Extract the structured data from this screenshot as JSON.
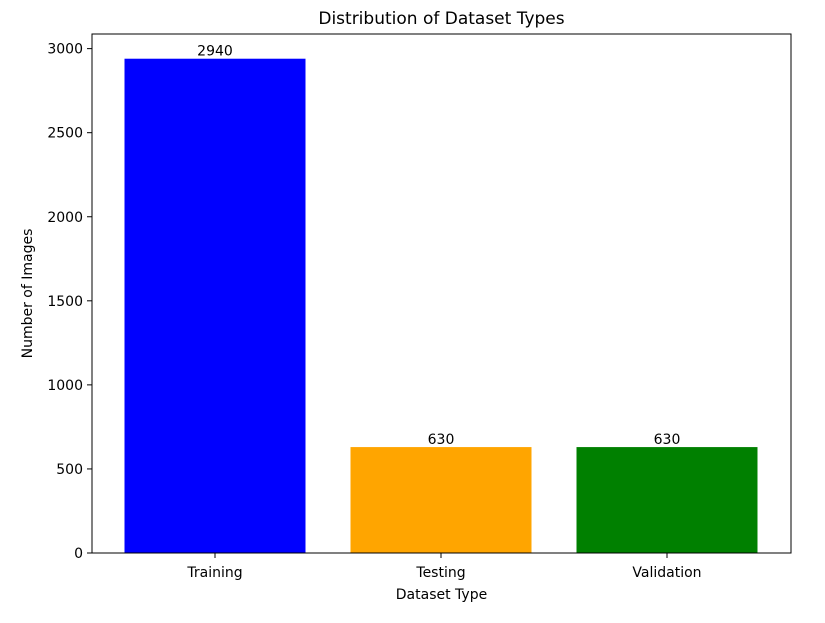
{
  "chart_data": {
    "type": "bar",
    "title": "Distribution of Dataset Types",
    "xlabel": "Dataset Type",
    "ylabel": "Number of Images",
    "categories": [
      "Training",
      "Testing",
      "Validation"
    ],
    "values": [
      2940,
      630,
      630
    ],
    "data_labels": [
      "2940",
      "630",
      "630"
    ],
    "colors": [
      "#0000ff",
      "#ffa500",
      "#008000"
    ],
    "ylim": [
      0,
      3087
    ],
    "yticks": [
      0,
      500,
      1000,
      1500,
      2000,
      2500,
      3000
    ],
    "grid": false,
    "legend": "none"
  }
}
